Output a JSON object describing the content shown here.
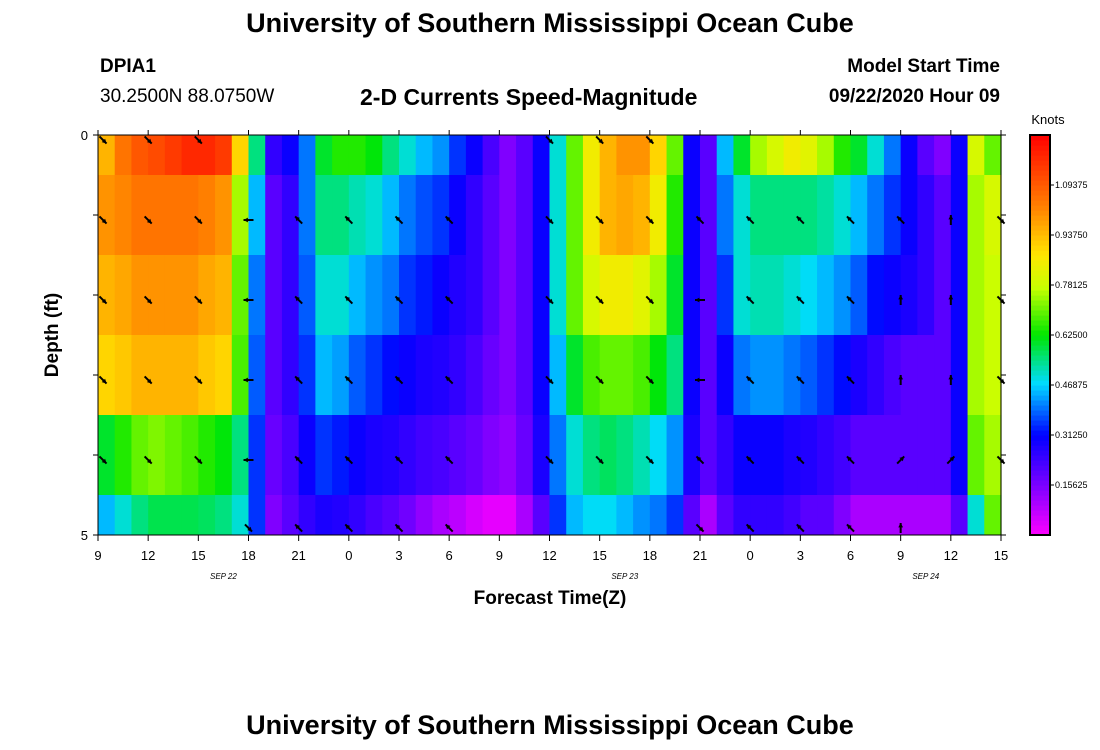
{
  "header": {
    "title": "University of Southern Mississippi Ocean Cube",
    "station_id": "DPIA1",
    "station_coords": "30.2500N 88.0750W",
    "subtitle": "2-D Currents Speed-Magnitude",
    "model_start_label": "Model Start Time",
    "model_start_value": "09/22/2020 Hour 09"
  },
  "footer": {
    "title": "University of Southern Mississippi Ocean Cube"
  },
  "chart_data": {
    "type": "heatmap",
    "xlabel": "Forecast Time(Z)",
    "ylabel": "Depth (ft)",
    "x_tick_labels": [
      "9",
      "12",
      "15",
      "18",
      "21",
      "0",
      "3",
      "6",
      "9",
      "12",
      "15",
      "18",
      "21",
      "0",
      "3",
      "6",
      "9",
      "12",
      "15"
    ],
    "day_labels": [
      {
        "label": "SEP 22",
        "after_tick": 2.5
      },
      {
        "label": "SEP 23",
        "after_tick": 10.5
      },
      {
        "label": "SEP 24",
        "after_tick": 16.5
      }
    ],
    "y_tick_labels": [
      "0",
      "5"
    ],
    "ylim": [
      0,
      5
    ],
    "hours_span": 54,
    "colorbar": {
      "unit_label": "Knots",
      "range": [
        0,
        1.25
      ],
      "tick_labels": [
        "0.15625",
        "0.31250",
        "0.46875",
        "0.62500",
        "0.78125",
        "0.93750",
        "1.09375"
      ],
      "tick_values": [
        0.15625,
        0.3125,
        0.46875,
        0.625,
        0.78125,
        0.9375,
        1.09375
      ]
    },
    "depth_levels": [
      {
        "depth_range": [
          0,
          1
        ],
        "speeds": [
          0.95,
          1.05,
          1.1,
          1.12,
          1.15,
          1.18,
          1.18,
          1.15,
          0.9,
          0.55,
          0.25,
          0.3,
          0.4,
          0.6,
          0.65,
          0.65,
          0.62,
          0.55,
          0.5,
          0.45,
          0.42,
          0.35,
          0.3,
          0.22,
          0.15,
          0.2,
          0.3,
          0.5,
          0.7,
          0.85,
          0.95,
          1.0,
          1.0,
          0.9,
          0.7,
          0.3,
          0.2,
          0.45,
          0.6,
          0.75,
          0.8,
          0.85,
          0.82,
          0.75,
          0.65,
          0.6,
          0.5,
          0.4,
          0.3,
          0.2,
          0.15,
          0.3,
          0.8,
          0.7
        ]
      },
      {
        "depth_range": [
          1,
          2
        ],
        "speeds": [
          1.0,
          1.02,
          1.05,
          1.05,
          1.05,
          1.05,
          1.03,
          1.0,
          0.75,
          0.45,
          0.2,
          0.25,
          0.4,
          0.55,
          0.55,
          0.52,
          0.5,
          0.45,
          0.4,
          0.37,
          0.35,
          0.3,
          0.25,
          0.2,
          0.15,
          0.2,
          0.3,
          0.5,
          0.7,
          0.85,
          0.95,
          0.97,
          0.95,
          0.85,
          0.65,
          0.3,
          0.2,
          0.4,
          0.5,
          0.55,
          0.55,
          0.55,
          0.55,
          0.53,
          0.5,
          0.45,
          0.4,
          0.35,
          0.3,
          0.25,
          0.2,
          0.3,
          0.75,
          0.8
        ]
      },
      {
        "depth_range": [
          2,
          3
        ],
        "speeds": [
          0.95,
          0.97,
          1.0,
          1.0,
          1.0,
          1.0,
          0.97,
          0.95,
          0.7,
          0.4,
          0.2,
          0.25,
          0.38,
          0.5,
          0.5,
          0.45,
          0.42,
          0.4,
          0.35,
          0.33,
          0.3,
          0.27,
          0.25,
          0.2,
          0.15,
          0.2,
          0.3,
          0.5,
          0.7,
          0.8,
          0.85,
          0.85,
          0.82,
          0.75,
          0.6,
          0.3,
          0.2,
          0.35,
          0.5,
          0.52,
          0.52,
          0.5,
          0.48,
          0.45,
          0.42,
          0.38,
          0.32,
          0.3,
          0.28,
          0.25,
          0.2,
          0.3,
          0.75,
          0.78
        ]
      },
      {
        "depth_range": [
          3,
          4
        ],
        "speeds": [
          0.9,
          0.92,
          0.95,
          0.95,
          0.95,
          0.95,
          0.92,
          0.9,
          0.68,
          0.38,
          0.2,
          0.25,
          0.35,
          0.45,
          0.43,
          0.38,
          0.35,
          0.32,
          0.3,
          0.28,
          0.27,
          0.25,
          0.22,
          0.18,
          0.15,
          0.2,
          0.3,
          0.45,
          0.6,
          0.68,
          0.7,
          0.7,
          0.68,
          0.62,
          0.55,
          0.3,
          0.2,
          0.3,
          0.4,
          0.42,
          0.42,
          0.4,
          0.38,
          0.35,
          0.32,
          0.28,
          0.25,
          0.22,
          0.2,
          0.2,
          0.2,
          0.3,
          0.75,
          0.78
        ]
      },
      {
        "depth_range": [
          4,
          5
        ],
        "speeds": [
          0.6,
          0.65,
          0.7,
          0.72,
          0.7,
          0.68,
          0.65,
          0.62,
          0.55,
          0.35,
          0.18,
          0.22,
          0.3,
          0.35,
          0.33,
          0.3,
          0.28,
          0.27,
          0.25,
          0.23,
          0.22,
          0.2,
          0.18,
          0.15,
          0.13,
          0.18,
          0.28,
          0.4,
          0.5,
          0.55,
          0.57,
          0.55,
          0.52,
          0.48,
          0.42,
          0.28,
          0.2,
          0.25,
          0.3,
          0.3,
          0.3,
          0.28,
          0.27,
          0.25,
          0.23,
          0.2,
          0.2,
          0.2,
          0.2,
          0.2,
          0.2,
          0.3,
          0.7,
          0.75
        ]
      },
      {
        "depth_range": [
          5,
          6
        ],
        "speeds": [
          0.45,
          0.5,
          0.55,
          0.58,
          0.58,
          0.58,
          0.57,
          0.55,
          0.5,
          0.35,
          0.15,
          0.2,
          0.25,
          0.28,
          0.27,
          0.25,
          0.22,
          0.2,
          0.17,
          0.13,
          0.1,
          0.08,
          0.05,
          0.03,
          0.03,
          0.1,
          0.2,
          0.35,
          0.45,
          0.48,
          0.48,
          0.45,
          0.42,
          0.4,
          0.35,
          0.2,
          0.1,
          0.2,
          0.25,
          0.25,
          0.25,
          0.23,
          0.2,
          0.2,
          0.15,
          0.1,
          0.1,
          0.1,
          0.1,
          0.1,
          0.1,
          0.2,
          0.5,
          0.7
        ]
      }
    ],
    "vector_rows": [
      {
        "depth_index": 0,
        "directions": [
          "SE",
          "SE",
          "SE",
          "",
          "",
          "",
          "",
          "",
          "",
          "SE",
          "SE",
          "SE",
          "",
          "",
          "",
          "",
          "",
          "",
          ""
        ]
      },
      {
        "depth_index": 1,
        "directions": [
          "SE",
          "SE",
          "SE",
          "W",
          "NW",
          "NW",
          "NW",
          "NW",
          "",
          "SE",
          "SE",
          "SE",
          "NW",
          "NW",
          "NW",
          "NW",
          "NW",
          "N",
          "SE"
        ]
      },
      {
        "depth_index": 2,
        "directions": [
          "SE",
          "SE",
          "SE",
          "W",
          "NW",
          "NW",
          "NW",
          "NW",
          "",
          "SE",
          "SE",
          "SE",
          "W",
          "NW",
          "NW",
          "NW",
          "N",
          "N",
          "SE"
        ]
      },
      {
        "depth_index": 3,
        "directions": [
          "SE",
          "SE",
          "SE",
          "W",
          "NW",
          "NW",
          "NW",
          "NW",
          "",
          "SE",
          "SE",
          "SE",
          "W",
          "NW",
          "NW",
          "NW",
          "N",
          "N",
          "SE"
        ]
      },
      {
        "depth_index": 4,
        "directions": [
          "SE",
          "SE",
          "SE",
          "W",
          "NW",
          "NW",
          "NW",
          "NW",
          "",
          "SE",
          "SE",
          "SE",
          "NW",
          "NW",
          "NW",
          "NW",
          "NE",
          "NE",
          "SE"
        ]
      },
      {
        "depth_index": 5,
        "directions": [
          "",
          "",
          "",
          "SE",
          "NW",
          "NW",
          "NW",
          "NW",
          "",
          "",
          "",
          "",
          "SE",
          "NW",
          "NW",
          "NW",
          "N",
          "",
          ""
        ]
      }
    ]
  }
}
